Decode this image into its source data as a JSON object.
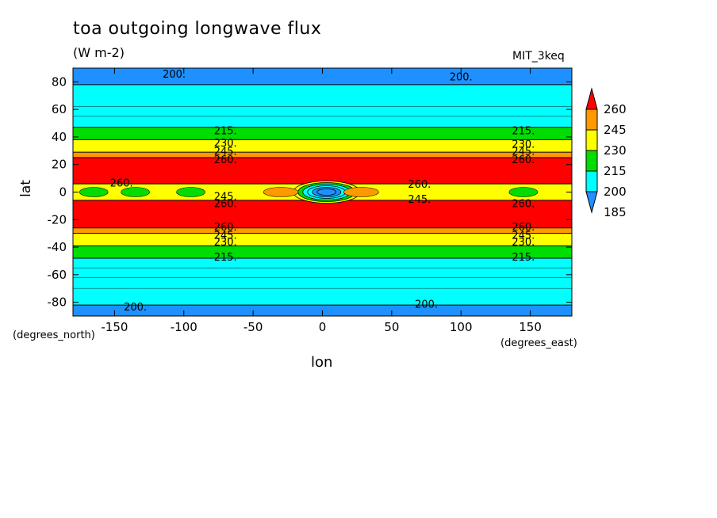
{
  "chart_data": {
    "type": "heatmap",
    "title": "toa outgoing longwave flux",
    "units_label": "(W m-2)",
    "model_label": "MIT_3keq",
    "xlabel": "lon",
    "ylabel": "lat",
    "x_units": "(degrees_east)",
    "y_units": "(degrees_north)",
    "xlim": [
      -180,
      180
    ],
    "ylim": [
      -90,
      90
    ],
    "x_ticks": [
      "-150",
      "-100",
      "-50",
      "0",
      "50",
      "100",
      "150"
    ],
    "y_ticks": [
      "80",
      "60",
      "40",
      "20",
      "0",
      "-20",
      "-40",
      "-60",
      "-80"
    ],
    "colorbar": {
      "levels": [
        "260",
        "245",
        "230",
        "215",
        "200",
        "185"
      ],
      "colors": [
        "#ff0000",
        "#ff9900",
        "#ffff00",
        "#00dd00",
        "#00ffff",
        "#1e90ff"
      ],
      "extend": "both"
    },
    "zonal_bands": [
      {
        "lat_min": 78,
        "lat_max": 90,
        "color": "#1e90ff",
        "range": "<200"
      },
      {
        "lat_min": 47,
        "lat_max": 78,
        "color": "#00ffff",
        "range": "200-215"
      },
      {
        "lat_min": 38,
        "lat_max": 47,
        "color": "#00dd00",
        "range": "215-230"
      },
      {
        "lat_min": 29,
        "lat_max": 38,
        "color": "#ffff00",
        "range": "230-245"
      },
      {
        "lat_min": 25,
        "lat_max": 29,
        "color": "#ff9900",
        "range": "245-260"
      },
      {
        "lat_min": 6,
        "lat_max": 25,
        "color": "#ff0000",
        "range": ">260"
      },
      {
        "lat_min": -6,
        "lat_max": 6,
        "color": "#ffff00",
        "range": "230-245"
      },
      {
        "lat_min": -26,
        "lat_max": -6,
        "color": "#ff0000",
        "range": ">260"
      },
      {
        "lat_min": -30,
        "lat_max": -26,
        "color": "#ff9900",
        "range": "245-260"
      },
      {
        "lat_min": -39,
        "lat_max": -30,
        "color": "#ffff00",
        "range": "230-245"
      },
      {
        "lat_min": -48,
        "lat_max": -39,
        "color": "#00dd00",
        "range": "215-230"
      },
      {
        "lat_min": -82,
        "lat_max": -48,
        "color": "#00ffff",
        "range": "200-215"
      },
      {
        "lat_min": -90,
        "lat_max": -82,
        "color": "#1e90ff",
        "range": "<200"
      }
    ],
    "features": [
      {
        "name": "equatorial minimum",
        "lon": 3,
        "lat": 0,
        "color": "#1e90ff",
        "range": "<200"
      },
      {
        "name": "green patch",
        "lon": -165,
        "lat": 0,
        "color": "#00dd00",
        "range": "215-230"
      },
      {
        "name": "green patch",
        "lon": -95,
        "lat": 0,
        "color": "#00dd00",
        "range": "215-230"
      },
      {
        "name": "green patch",
        "lon": -135,
        "lat": 0,
        "color": "#00dd00",
        "range": "215-230"
      },
      {
        "name": "green patch",
        "lon": 145,
        "lat": 0,
        "color": "#00dd00",
        "range": "215-230"
      },
      {
        "name": "orange patch",
        "lon": -30,
        "lat": 0,
        "color": "#ff9900",
        "range": "245-260"
      },
      {
        "name": "orange patch",
        "lon": 28,
        "lat": 0,
        "color": "#ff9900",
        "range": "245-260"
      }
    ],
    "contour_labels": [
      {
        "text": "200.",
        "lon": -107,
        "lat": 86
      },
      {
        "text": "200.",
        "lon": 100,
        "lat": 84
      },
      {
        "text": "215.",
        "lon": -70,
        "lat": 45
      },
      {
        "text": "215.",
        "lon": 145,
        "lat": 45
      },
      {
        "text": "230.",
        "lon": -70,
        "lat": 36
      },
      {
        "text": "230.",
        "lon": 145,
        "lat": 35
      },
      {
        "text": "245.",
        "lon": -70,
        "lat": 30
      },
      {
        "text": "245.",
        "lon": 145,
        "lat": 30
      },
      {
        "text": "260.",
        "lon": -70,
        "lat": 24
      },
      {
        "text": "260.",
        "lon": 145,
        "lat": 24
      },
      {
        "text": "260.",
        "lon": -145,
        "lat": 7
      },
      {
        "text": "260.",
        "lon": 70,
        "lat": 6
      },
      {
        "text": "245.",
        "lon": -70,
        "lat": -3
      },
      {
        "text": "245.",
        "lon": 70,
        "lat": -5
      },
      {
        "text": "260.",
        "lon": -70,
        "lat": -8
      },
      {
        "text": "260.",
        "lon": 145,
        "lat": -8
      },
      {
        "text": "260.",
        "lon": -70,
        "lat": -25
      },
      {
        "text": "260.",
        "lon": 145,
        "lat": -25
      },
      {
        "text": "245.",
        "lon": -70,
        "lat": -31
      },
      {
        "text": "245.",
        "lon": 145,
        "lat": -31
      },
      {
        "text": "230.",
        "lon": -70,
        "lat": -36
      },
      {
        "text": "230.",
        "lon": 145,
        "lat": -36
      },
      {
        "text": "215.",
        "lon": -70,
        "lat": -47
      },
      {
        "text": "215.",
        "lon": 145,
        "lat": -47
      },
      {
        "text": "200.",
        "lon": -135,
        "lat": -83
      },
      {
        "text": "200.",
        "lon": 75,
        "lat": -81
      }
    ]
  }
}
